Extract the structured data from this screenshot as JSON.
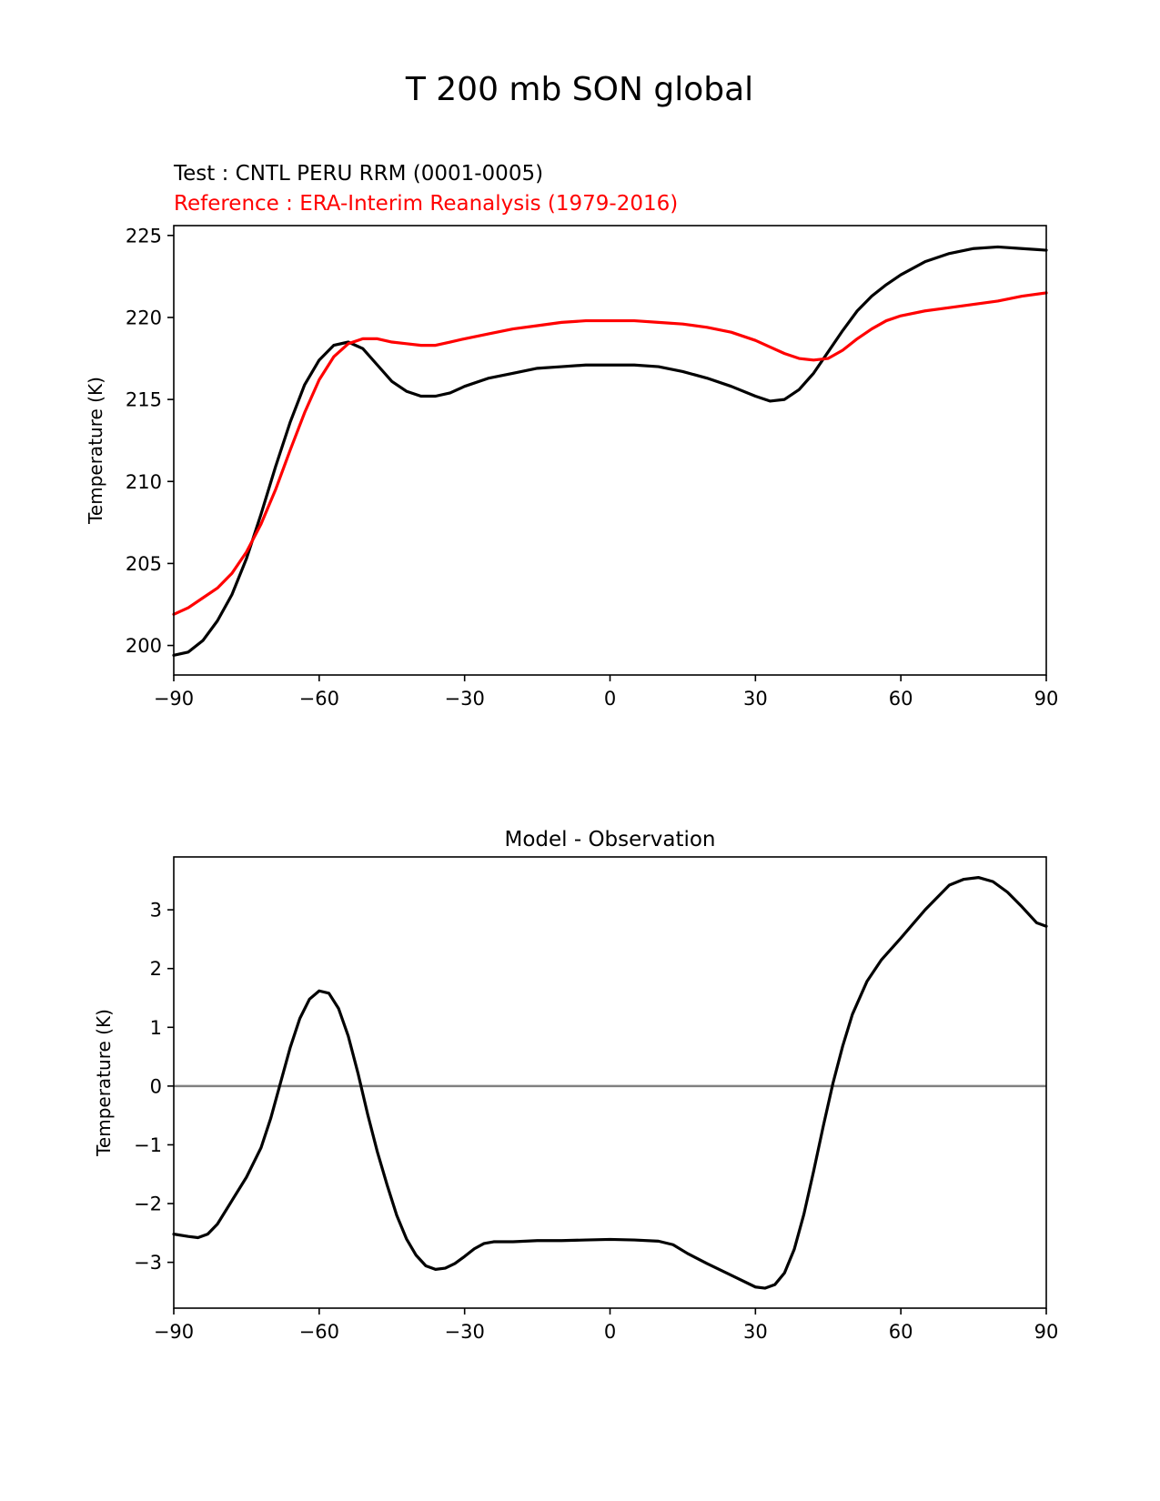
{
  "figure": {
    "suptitle": "T 200 mb SON global"
  },
  "chart_data": [
    {
      "type": "line",
      "title_left_lines": [
        {
          "text": "Test : CNTL PERU RRM (0001-0005)",
          "color": "#000000"
        },
        {
          "text": "Reference : ERA-Interim Reanalysis (1979-2016)",
          "color": "#ff0000"
        }
      ],
      "xlabel": "",
      "ylabel": "Temperature (K)",
      "xlim": [
        -90,
        90
      ],
      "ylim": [
        198.2,
        225.6
      ],
      "xticks": [
        -90,
        -60,
        -30,
        0,
        30,
        60,
        90
      ],
      "xtick_labels": [
        "−90",
        "−60",
        "−30",
        "0",
        "30",
        "60",
        "90"
      ],
      "yticks": [
        200,
        205,
        210,
        215,
        220,
        225
      ],
      "ytick_labels": [
        "200",
        "205",
        "210",
        "215",
        "220",
        "225"
      ],
      "grid": false,
      "series": [
        {
          "color": "#000000",
          "x": [
            -90,
            -87,
            -84,
            -81,
            -78,
            -75,
            -72,
            -69,
            -66,
            -63,
            -60,
            -57,
            -54,
            -51,
            -48,
            -45,
            -42,
            -39,
            -36,
            -33,
            -30,
            -25,
            -20,
            -15,
            -10,
            -5,
            0,
            5,
            10,
            15,
            20,
            25,
            30,
            33,
            36,
            39,
            42,
            45,
            48,
            51,
            54,
            57,
            60,
            65,
            70,
            75,
            80,
            85,
            90
          ],
          "values": [
            199.4,
            199.6,
            200.3,
            201.5,
            203.1,
            205.3,
            208.0,
            210.9,
            213.6,
            215.9,
            217.4,
            218.3,
            218.5,
            218.1,
            217.1,
            216.1,
            215.5,
            215.2,
            215.2,
            215.4,
            215.8,
            216.3,
            216.6,
            216.9,
            217.0,
            217.1,
            217.1,
            217.1,
            217.0,
            216.7,
            216.3,
            215.8,
            215.2,
            214.9,
            215.0,
            215.6,
            216.6,
            217.9,
            219.2,
            220.4,
            221.3,
            222.0,
            222.6,
            223.4,
            223.9,
            224.2,
            224.3,
            224.2,
            224.1
          ]
        },
        {
          "color": "#ff0000",
          "x": [
            -90,
            -87,
            -84,
            -81,
            -78,
            -75,
            -72,
            -69,
            -66,
            -63,
            -60,
            -57,
            -54,
            -51,
            -48,
            -45,
            -42,
            -39,
            -36,
            -33,
            -30,
            -25,
            -20,
            -15,
            -10,
            -5,
            0,
            5,
            10,
            15,
            20,
            25,
            30,
            33,
            36,
            39,
            42,
            45,
            48,
            51,
            54,
            57,
            60,
            65,
            70,
            75,
            80,
            85,
            90
          ],
          "values": [
            201.9,
            202.3,
            202.9,
            203.5,
            204.4,
            205.7,
            207.4,
            209.5,
            211.9,
            214.2,
            216.2,
            217.6,
            218.4,
            218.7,
            218.7,
            218.5,
            218.4,
            218.3,
            218.3,
            218.5,
            218.7,
            219.0,
            219.3,
            219.5,
            219.7,
            219.8,
            219.8,
            219.8,
            219.7,
            219.6,
            219.4,
            219.1,
            218.6,
            218.2,
            217.8,
            217.5,
            217.4,
            217.5,
            218.0,
            218.7,
            219.3,
            219.8,
            220.1,
            220.4,
            220.6,
            220.8,
            221.0,
            221.3,
            221.5
          ]
        }
      ]
    },
    {
      "type": "line",
      "title": "Model - Observation",
      "xlabel": "",
      "ylabel": "Temperature (K)",
      "xlim": [
        -90,
        90
      ],
      "ylim": [
        -3.78,
        3.9
      ],
      "xticks": [
        -90,
        -60,
        -30,
        0,
        30,
        60,
        90
      ],
      "xtick_labels": [
        "−90",
        "−60",
        "−30",
        "0",
        "30",
        "60",
        "90"
      ],
      "yticks": [
        -3,
        -2,
        -1,
        0,
        1,
        2,
        3
      ],
      "ytick_labels": [
        "−3",
        "−2",
        "−1",
        "0",
        "1",
        "2",
        "3"
      ],
      "grid": false,
      "zero_line_color": "#808080",
      "series": [
        {
          "color": "#000000",
          "x": [
            -90,
            -87,
            -85,
            -83,
            -81,
            -78,
            -75,
            -72,
            -70,
            -68,
            -66,
            -64,
            -62,
            -60,
            -58,
            -56,
            -54,
            -52,
            -50,
            -48,
            -46,
            -44,
            -42,
            -40,
            -38,
            -36,
            -34,
            -32,
            -30,
            -28,
            -26,
            -24,
            -22,
            -20,
            -15,
            -10,
            -5,
            0,
            5,
            10,
            13,
            16,
            20,
            25,
            30,
            32,
            34,
            36,
            38,
            40,
            42,
            44,
            46,
            48,
            50,
            53,
            56,
            60,
            65,
            70,
            73,
            76,
            79,
            82,
            85,
            88,
            90
          ],
          "values": [
            -2.52,
            -2.56,
            -2.58,
            -2.52,
            -2.35,
            -1.95,
            -1.55,
            -1.05,
            -0.55,
            0.05,
            0.65,
            1.15,
            1.48,
            1.62,
            1.58,
            1.32,
            0.85,
            0.22,
            -0.48,
            -1.12,
            -1.68,
            -2.2,
            -2.6,
            -2.88,
            -3.06,
            -3.12,
            -3.1,
            -3.02,
            -2.9,
            -2.77,
            -2.68,
            -2.65,
            -2.65,
            -2.65,
            -2.63,
            -2.63,
            -2.62,
            -2.61,
            -2.62,
            -2.64,
            -2.7,
            -2.85,
            -3.02,
            -3.22,
            -3.42,
            -3.44,
            -3.38,
            -3.18,
            -2.78,
            -2.18,
            -1.45,
            -0.68,
            0.05,
            0.68,
            1.22,
            1.78,
            2.15,
            2.52,
            3.0,
            3.42,
            3.52,
            3.55,
            3.48,
            3.3,
            3.05,
            2.78,
            2.72
          ]
        }
      ]
    }
  ]
}
